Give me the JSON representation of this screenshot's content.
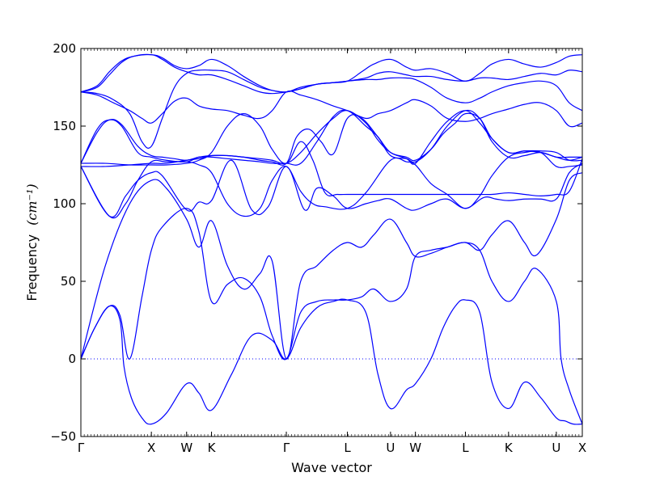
{
  "chart_data": {
    "type": "line",
    "title": "",
    "xlabel": "Wave vector",
    "ylabel": "Frequency",
    "ylabel_unit": "(cm⁻¹)",
    "ylim": [
      -50,
      200
    ],
    "yticks": [
      -50,
      0,
      50,
      100,
      150,
      200
    ],
    "grid": false,
    "legend": "none",
    "line_color": "#0000ff",
    "zero_line": {
      "y": 0,
      "style": "dotted",
      "color": "#0000ff"
    },
    "xlim": [
      0,
      6.16
    ],
    "kpoints": [
      {
        "label": "Γ",
        "x": 0.0
      },
      {
        "label": "X",
        "x": 0.866
      },
      {
        "label": "W",
        "x": 1.299
      },
      {
        "label": "K",
        "x": 1.605
      },
      {
        "label": "Γ",
        "x": 2.524
      },
      {
        "label": "L",
        "x": 3.274
      },
      {
        "label": "U",
        "x": 3.804
      },
      {
        "label": "W",
        "x": 4.11
      },
      {
        "label": "L",
        "x": 4.724
      },
      {
        "label": "K",
        "x": 5.254
      },
      {
        "label": "U",
        "x": 5.841
      },
      {
        "label": "X",
        "x": 6.16
      }
    ],
    "series": [
      {
        "x": [
          0,
          0.17,
          0.35,
          0.48,
          0.53,
          0.62,
          0.75,
          0.866,
          1.05,
          1.299,
          1.45,
          1.605,
          1.85,
          2.1,
          2.35,
          2.524,
          2.7,
          2.9,
          3.1,
          3.274,
          3.5,
          3.65,
          3.804,
          4.0,
          4.11,
          4.3,
          4.45,
          4.6,
          4.724,
          4.9,
          5.05,
          5.254,
          5.45,
          5.65,
          5.841,
          5.95,
          6.05,
          6.16
        ],
        "y": [
          0,
          20,
          34,
          25,
          -5,
          -25,
          -38,
          -42,
          -35,
          -16,
          -22,
          -33,
          -10,
          15,
          12,
          0,
          20,
          33,
          37,
          38,
          30,
          -10,
          -32,
          -20,
          -16,
          0,
          20,
          34,
          38,
          30,
          -15,
          -32,
          -15,
          -25,
          -38,
          -40,
          -42,
          -42
        ]
      },
      {
        "x": [
          0,
          0.17,
          0.35,
          0.48,
          0.6,
          0.75,
          0.866,
          1.0,
          1.299,
          1.45,
          1.605,
          1.8,
          2.0,
          2.2,
          2.35,
          2.524,
          2.7,
          2.9,
          3.1,
          3.274,
          3.45,
          3.6,
          3.804,
          4.0,
          4.11,
          4.3,
          4.5,
          4.724,
          4.9,
          5.05,
          5.254,
          5.45,
          5.6,
          5.841,
          5.9,
          6.0,
          6.16
        ],
        "y": [
          0,
          20,
          34,
          28,
          0,
          40,
          70,
          85,
          97,
          82,
          37,
          48,
          52,
          40,
          15,
          0,
          30,
          37,
          38,
          38,
          40,
          45,
          37,
          45,
          66,
          70,
          72,
          75,
          70,
          50,
          37,
          50,
          58,
          37,
          0,
          -20,
          -42
        ]
      },
      {
        "x": [
          0,
          0.3,
          0.6,
          0.866,
          1.05,
          1.299,
          1.45,
          1.605,
          1.8,
          2.0,
          2.2,
          2.35,
          2.524,
          2.7,
          2.9,
          3.1,
          3.274,
          3.45,
          3.6,
          3.804,
          4.0,
          4.11,
          4.3,
          4.5,
          4.724,
          4.9,
          5.05,
          5.254,
          5.45,
          5.6,
          5.841,
          6.0,
          6.16
        ],
        "y": [
          0,
          60,
          100,
          115,
          110,
          90,
          72,
          89,
          60,
          45,
          55,
          63,
          0,
          50,
          60,
          70,
          75,
          72,
          80,
          90,
          75,
          66,
          68,
          72,
          75,
          70,
          80,
          89,
          75,
          67,
          90,
          115,
          120
        ]
      },
      {
        "x": [
          0,
          0.35,
          0.55,
          0.7,
          0.866,
          1.0,
          1.299,
          1.45,
          1.605,
          1.85,
          2.1,
          2.3,
          2.524,
          2.75,
          2.9,
          3.1,
          3.274,
          3.5,
          3.65,
          3.804,
          4.0,
          4.11,
          4.3,
          4.5,
          4.724,
          4.95,
          5.1,
          5.254,
          5.45,
          5.65,
          5.841,
          6.0,
          6.16
        ],
        "y": [
          124,
          92,
          105,
          115,
          120,
          118,
          96,
          101,
          102,
          128,
          96,
          98,
          124,
          96,
          110,
          105,
          97,
          100,
          102,
          103,
          97,
          96,
          100,
          103,
          97,
          104,
          103,
          102,
          103,
          103,
          103,
          120,
          126
        ]
      },
      {
        "x": [
          0,
          0.35,
          0.55,
          0.7,
          0.866,
          1.05,
          1.299,
          1.45,
          1.605,
          1.8,
          2.0,
          2.2,
          2.35,
          2.524,
          2.7,
          2.85,
          3.0,
          3.274,
          3.5,
          3.804,
          4.0,
          4.11,
          4.3,
          4.5,
          4.724,
          4.9,
          5.05,
          5.254,
          5.45,
          5.65,
          5.841,
          6.0,
          6.16
        ],
        "y": [
          124,
          92,
          100,
          115,
          127,
          127,
          127,
          125,
          120,
          100,
          92,
          97,
          115,
          124,
          108,
          100,
          98,
          97,
          107,
          128,
          127,
          125,
          113,
          106,
          97,
          105,
          118,
          130,
          133,
          133,
          124,
          124,
          125
        ]
      },
      {
        "x": [
          0,
          0.3,
          0.6,
          0.866,
          1.05,
          1.299,
          1.45,
          1.605,
          1.8,
          2.0,
          2.2,
          2.35,
          2.524,
          2.7,
          2.85,
          3.0,
          3.15,
          3.274,
          3.45,
          3.6,
          3.804,
          4.0,
          4.11,
          4.3,
          4.45,
          4.6,
          4.724,
          4.9,
          5.05,
          5.254,
          5.45,
          5.65,
          5.841,
          6.0,
          6.16
        ],
        "y": [
          126,
          126,
          125,
          125,
          125,
          126,
          128,
          133,
          150,
          158,
          150,
          135,
          126,
          140,
          128,
          107,
          106,
          106,
          106,
          106,
          106,
          106,
          106,
          106,
          106,
          106,
          106,
          106,
          106,
          107,
          106,
          105,
          106,
          108,
          129
        ]
      },
      {
        "x": [
          0,
          0.3,
          0.6,
          0.866,
          1.05,
          1.299,
          1.45,
          1.605,
          1.8,
          2.0,
          2.2,
          2.35,
          2.524,
          2.65,
          2.8,
          2.95,
          3.1,
          3.274,
          3.45,
          3.65,
          3.804,
          4.0,
          4.11,
          4.3,
          4.45,
          4.6,
          4.724,
          4.9,
          5.05,
          5.254,
          5.45,
          5.65,
          5.841,
          6.0,
          6.16
        ],
        "y": [
          124,
          124,
          125,
          126,
          126,
          128,
          129,
          131,
          131,
          130,
          128,
          127,
          126,
          143,
          148,
          140,
          132,
          155,
          155,
          143,
          133,
          130,
          128,
          135,
          145,
          152,
          158,
          155,
          142,
          133,
          134,
          134,
          133,
          128,
          128
        ]
      },
      {
        "x": [
          0,
          0.2,
          0.35,
          0.5,
          0.7,
          0.866,
          1.05,
          1.299,
          1.45,
          1.605,
          1.8,
          2.0,
          2.2,
          2.35,
          2.524,
          2.7,
          2.9,
          3.1,
          3.274,
          3.5,
          3.65,
          3.804,
          4.0,
          4.11,
          4.3,
          4.5,
          4.724,
          4.9,
          5.05,
          5.254,
          5.45,
          5.65,
          5.841,
          6.0,
          6.16
        ],
        "y": [
          126,
          148,
          154,
          150,
          133,
          130,
          128,
          127,
          130,
          130,
          129,
          128,
          127,
          126,
          126,
          126,
          140,
          156,
          160,
          150,
          143,
          131,
          129,
          127,
          135,
          150,
          160,
          155,
          140,
          130,
          131,
          133,
          130,
          130,
          130
        ]
      },
      {
        "x": [
          0,
          0.2,
          0.35,
          0.5,
          0.7,
          0.866,
          1.0,
          1.15,
          1.299,
          1.45,
          1.605,
          1.8,
          2.0,
          2.2,
          2.35,
          2.524,
          2.7,
          2.9,
          3.1,
          3.274,
          3.5,
          3.65,
          3.804,
          4.0,
          4.11,
          4.3,
          4.5,
          4.724,
          4.9,
          5.05,
          5.254,
          5.45,
          5.65,
          5.841,
          6.0,
          6.16
        ],
        "y": [
          126,
          146,
          154,
          151,
          137,
          131,
          130,
          129,
          128,
          130,
          131,
          131,
          130,
          129,
          128,
          126,
          133,
          145,
          155,
          160,
          152,
          141,
          133,
          129,
          126,
          140,
          153,
          160,
          152,
          142,
          133,
          134,
          133,
          130,
          128,
          130
        ]
      },
      {
        "x": [
          0,
          0.2,
          0.4,
          0.6,
          0.75,
          0.866,
          1.0,
          1.15,
          1.299,
          1.45,
          1.605,
          1.8,
          2.0,
          2.2,
          2.35,
          2.524,
          2.7,
          2.9,
          3.1,
          3.274,
          3.5,
          3.65,
          3.804,
          4.0,
          4.11,
          4.3,
          4.5,
          4.724,
          4.9,
          5.05,
          5.254,
          5.45,
          5.65,
          5.841,
          6.0,
          6.16
        ],
        "y": [
          172,
          170,
          165,
          160,
          155,
          152,
          158,
          166,
          168,
          163,
          161,
          160,
          157,
          155,
          160,
          172,
          170,
          167,
          163,
          160,
          155,
          158,
          160,
          165,
          167,
          163,
          155,
          153,
          155,
          158,
          161,
          164,
          165,
          160,
          150,
          152
        ]
      },
      {
        "x": [
          0,
          0.2,
          0.4,
          0.6,
          0.75,
          0.866,
          1.0,
          1.15,
          1.299,
          1.45,
          1.605,
          1.8,
          2.0,
          2.2,
          2.35,
          2.524,
          2.7,
          2.9,
          3.1,
          3.274,
          3.5,
          3.65,
          3.804,
          4.0,
          4.11,
          4.3,
          4.5,
          4.724,
          4.9,
          5.05,
          5.254,
          5.45,
          5.65,
          5.841,
          6.0,
          6.16
        ],
        "y": [
          172,
          171,
          167,
          158,
          140,
          137,
          155,
          175,
          184,
          186,
          186,
          185,
          180,
          175,
          173,
          172,
          174,
          177,
          178,
          179,
          180,
          180,
          181,
          181,
          180,
          175,
          168,
          165,
          168,
          172,
          176,
          178,
          179,
          176,
          165,
          160
        ]
      },
      {
        "x": [
          0,
          0.2,
          0.35,
          0.5,
          0.65,
          0.866,
          1.0,
          1.15,
          1.299,
          1.45,
          1.605,
          1.8,
          2.0,
          2.2,
          2.35,
          2.524,
          2.7,
          2.9,
          3.1,
          3.274,
          3.5,
          3.65,
          3.804,
          4.0,
          4.11,
          4.3,
          4.5,
          4.724,
          4.9,
          5.05,
          5.254,
          5.45,
          5.65,
          5.841,
          6.0,
          6.16
        ],
        "y": [
          172,
          175,
          183,
          191,
          195,
          196,
          193,
          188,
          185,
          183,
          183,
          180,
          176,
          172,
          171,
          172,
          174,
          177,
          178,
          179,
          181,
          184,
          185,
          183,
          182,
          182,
          180,
          179,
          181,
          181,
          180,
          182,
          184,
          183,
          186,
          185
        ]
      },
      {
        "x": [
          0,
          0.2,
          0.35,
          0.5,
          0.65,
          0.866,
          1.0,
          1.15,
          1.299,
          1.45,
          1.605,
          1.8,
          2.0,
          2.2,
          2.35,
          2.524,
          2.7,
          2.9,
          3.1,
          3.274,
          3.45,
          3.6,
          3.804,
          4.0,
          4.11,
          4.3,
          4.5,
          4.724,
          4.9,
          5.05,
          5.254,
          5.45,
          5.65,
          5.841,
          6.0,
          6.16
        ],
        "y": [
          172,
          176,
          185,
          192,
          195,
          196,
          194,
          189,
          187,
          189,
          193,
          189,
          182,
          176,
          173,
          172,
          175,
          177,
          178,
          179,
          185,
          190,
          193,
          188,
          186,
          187,
          184,
          179,
          184,
          190,
          193,
          190,
          188,
          191,
          195,
          196
        ]
      }
    ]
  }
}
